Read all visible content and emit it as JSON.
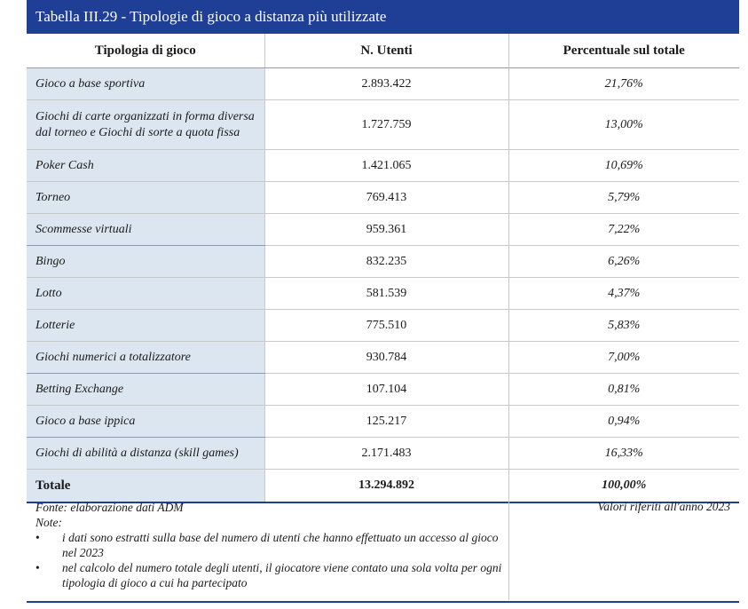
{
  "title": "Tabella III.29 - Tipologie di gioco a distanza più utilizzate",
  "headers": [
    "Tipologia di gioco",
    "N. Utenti",
    "Percentuale sul totale"
  ],
  "rows": [
    {
      "label": "Gioco a base sportiva",
      "users": "2.893.422",
      "pct": "21,76%"
    },
    {
      "label": "Giochi di carte organizzati in forma diversa dal torneo e Giochi di sorte a quota fissa",
      "users": "1.727.759",
      "pct": "13,00%"
    },
    {
      "label": "Poker Cash",
      "users": "1.421.065",
      "pct": "10,69%"
    },
    {
      "label": "Torneo",
      "users": "769.413",
      "pct": "5,79%"
    },
    {
      "label": "Scommesse virtuali",
      "users": "959.361",
      "pct": "7,22%"
    },
    {
      "label": "Bingo",
      "users": "832.235",
      "pct": "6,26%"
    },
    {
      "label": "Lotto",
      "users": "581.539",
      "pct": "4,37%"
    },
    {
      "label": "Lotterie",
      "users": "775.510",
      "pct": "5,83%"
    },
    {
      "label": "Giochi numerici a totalizzatore",
      "users": "930.784",
      "pct": "7,00%"
    },
    {
      "label": "Betting Exchange",
      "users": "107.104",
      "pct": "0,81%"
    },
    {
      "label": "Gioco a base ippica",
      "users": "125.217",
      "pct": "0,94%"
    },
    {
      "label": "Giochi di abilità a distanza (skill games)",
      "users": "2.171.483",
      "pct": "16,33%"
    }
  ],
  "total": {
    "label": "Totale",
    "users": "13.294.892",
    "pct": "100,00%"
  },
  "footer": {
    "source": "Fonte: elaborazione dati ADM",
    "notes_label": "Note:",
    "notes": [
      "i dati sono estratti sulla base del numero di utenti che hanno effettuato un accesso al gioco nel 2023",
      "nel calcolo del numero totale degli utenti, il giocatore viene contato una sola volta per ogni tipologia di gioco a cui ha partecipato"
    ],
    "right_note": "Valori riferiti all'anno 2023"
  },
  "colors": {
    "title_bg": "#1f3f96",
    "label_bg": "#dce6f1"
  }
}
